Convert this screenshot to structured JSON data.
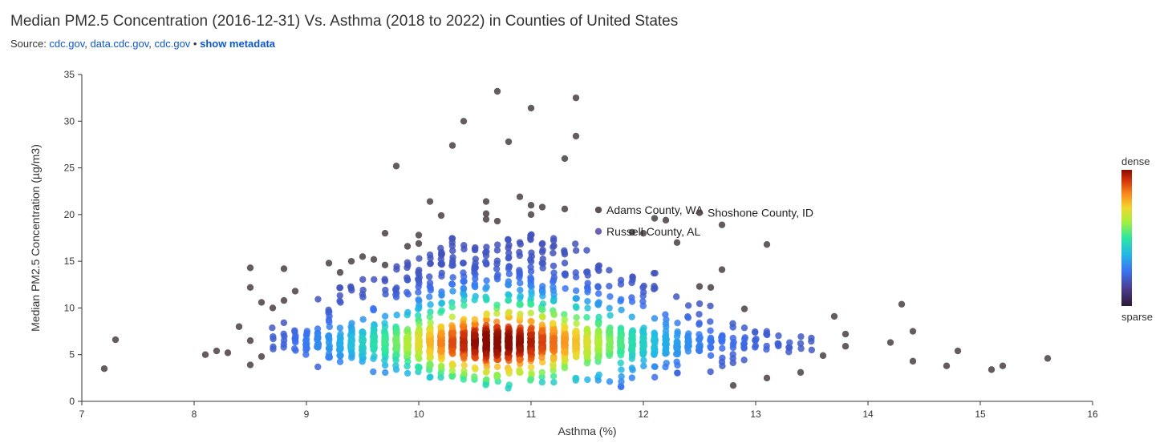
{
  "header": {
    "title": "Median PM2.5 Concentration (2016-12-31) Vs. Asthma (2018 to 2022) in Counties of United States",
    "source_prefix": "Source: ",
    "sources": [
      "cdc.gov",
      "data.cdc.gov",
      "cdc.gov"
    ],
    "separator": " • ",
    "metadata_link": "show metadata"
  },
  "colors": {
    "dense": "#8b0a00",
    "sparse": "#2b1a35",
    "outlier": "#4a3f42",
    "link": "#0b57d0"
  },
  "legend": {
    "dense_label": "dense",
    "sparse_label": "sparse"
  },
  "chart_data": {
    "type": "scatter",
    "title": "Median PM2.5 Concentration (2016-12-31) Vs. Asthma (2018 to 2022) in Counties of United States",
    "xlabel": "Asthma (%)",
    "ylabel": "Median PM2.5 Concentration (µg/m3)",
    "xlim": [
      7,
      16
    ],
    "ylim": [
      0,
      35
    ],
    "x_ticks": [
      7,
      8,
      9,
      10,
      11,
      12,
      13,
      14,
      15,
      16
    ],
    "y_ticks": [
      0,
      5,
      10,
      15,
      20,
      25,
      30,
      35
    ],
    "color_encoding": "point density",
    "annotations": [
      {
        "label": "Adams County, WA",
        "x": 11.6,
        "y": 20.5
      },
      {
        "label": "Shoshone County, ID",
        "x": 12.5,
        "y": 20.2
      },
      {
        "label": "Russell County, AL",
        "x": 11.6,
        "y": 18.2
      }
    ],
    "outliers": [
      [
        7.2,
        3.5
      ],
      [
        7.3,
        6.6
      ],
      [
        8.1,
        5.0
      ],
      [
        8.2,
        5.4
      ],
      [
        8.3,
        5.2
      ],
      [
        8.4,
        8.0
      ],
      [
        8.5,
        14.3
      ],
      [
        8.5,
        12.2
      ],
      [
        8.5,
        6.5
      ],
      [
        8.5,
        3.9
      ],
      [
        8.6,
        10.6
      ],
      [
        8.6,
        4.8
      ],
      [
        8.7,
        10.0
      ],
      [
        8.8,
        14.2
      ],
      [
        8.8,
        10.8
      ],
      [
        8.9,
        11.8
      ],
      [
        9.2,
        14.8
      ],
      [
        9.3,
        13.8
      ],
      [
        9.4,
        15.0
      ],
      [
        9.5,
        15.5
      ],
      [
        9.6,
        15.2
      ],
      [
        9.7,
        14.6
      ],
      [
        9.7,
        18.0
      ],
      [
        9.8,
        25.2
      ],
      [
        9.9,
        16.6
      ],
      [
        10.0,
        17.8
      ],
      [
        10.0,
        16.9
      ],
      [
        10.1,
        21.4
      ],
      [
        10.2,
        19.9
      ],
      [
        10.3,
        27.4
      ],
      [
        10.4,
        30.0
      ],
      [
        10.6,
        21.4
      ],
      [
        10.6,
        20.1
      ],
      [
        10.6,
        19.5
      ],
      [
        10.7,
        33.2
      ],
      [
        10.7,
        19.3
      ],
      [
        10.8,
        27.8
      ],
      [
        10.9,
        21.9
      ],
      [
        11.0,
        31.4
      ],
      [
        11.0,
        21.0
      ],
      [
        11.0,
        20.0
      ],
      [
        11.1,
        20.8
      ],
      [
        11.3,
        26.0
      ],
      [
        11.3,
        20.6
      ],
      [
        11.4,
        32.5
      ],
      [
        11.4,
        28.4
      ],
      [
        11.9,
        18.1
      ],
      [
        12.0,
        18.0
      ],
      [
        12.1,
        19.6
      ],
      [
        12.2,
        19.4
      ],
      [
        12.3,
        17.0
      ],
      [
        12.5,
        12.3
      ],
      [
        12.6,
        12.2
      ],
      [
        12.7,
        18.9
      ],
      [
        12.7,
        14.1
      ],
      [
        12.9,
        9.9
      ],
      [
        13.1,
        16.8
      ],
      [
        13.1,
        2.5
      ],
      [
        13.4,
        3.1
      ],
      [
        13.6,
        4.9
      ],
      [
        13.7,
        9.1
      ],
      [
        13.8,
        7.2
      ],
      [
        13.8,
        5.9
      ],
      [
        14.2,
        6.3
      ],
      [
        14.3,
        10.4
      ],
      [
        14.4,
        7.5
      ],
      [
        14.4,
        4.3
      ],
      [
        14.7,
        3.8
      ],
      [
        14.8,
        5.4
      ],
      [
        15.1,
        3.4
      ],
      [
        15.2,
        3.8
      ],
      [
        15.6,
        4.6
      ],
      [
        12.8,
        1.7
      ]
    ],
    "dense_columns": [
      {
        "x": 8.7,
        "n": 5,
        "ymin": 4.5,
        "ymax": 8.5
      },
      {
        "x": 8.8,
        "n": 6,
        "ymin": 4.5,
        "ymax": 9.0
      },
      {
        "x": 8.9,
        "n": 10,
        "ymin": 3.8,
        "ymax": 10.0
      },
      {
        "x": 9.0,
        "n": 14,
        "ymin": 3.5,
        "ymax": 10.5
      },
      {
        "x": 9.1,
        "n": 18,
        "ymin": 3.5,
        "ymax": 11.0
      },
      {
        "x": 9.2,
        "n": 22,
        "ymin": 3.0,
        "ymax": 11.5
      },
      {
        "x": 9.3,
        "n": 28,
        "ymin": 3.5,
        "ymax": 12.5
      },
      {
        "x": 9.4,
        "n": 34,
        "ymin": 3.5,
        "ymax": 13.0
      },
      {
        "x": 9.5,
        "n": 40,
        "ymin": 3.5,
        "ymax": 13.5
      },
      {
        "x": 9.6,
        "n": 46,
        "ymin": 3.0,
        "ymax": 13.5
      },
      {
        "x": 9.7,
        "n": 52,
        "ymin": 3.0,
        "ymax": 14.0
      },
      {
        "x": 9.8,
        "n": 60,
        "ymin": 3.0,
        "ymax": 14.5
      },
      {
        "x": 9.9,
        "n": 70,
        "ymin": 2.5,
        "ymax": 15.0
      },
      {
        "x": 10.0,
        "n": 80,
        "ymin": 2.5,
        "ymax": 15.5
      },
      {
        "x": 10.1,
        "n": 90,
        "ymin": 2.5,
        "ymax": 16.0
      },
      {
        "x": 10.2,
        "n": 100,
        "ymin": 2.5,
        "ymax": 16.5
      },
      {
        "x": 10.3,
        "n": 110,
        "ymin": 2.0,
        "ymax": 17.5
      },
      {
        "x": 10.4,
        "n": 118,
        "ymin": 2.0,
        "ymax": 17.5
      },
      {
        "x": 10.5,
        "n": 125,
        "ymin": 2.0,
        "ymax": 17.0
      },
      {
        "x": 10.6,
        "n": 130,
        "ymin": 1.5,
        "ymax": 17.5
      },
      {
        "x": 10.7,
        "n": 130,
        "ymin": 2.0,
        "ymax": 17.0
      },
      {
        "x": 10.8,
        "n": 128,
        "ymin": 1.2,
        "ymax": 17.5
      },
      {
        "x": 10.9,
        "n": 125,
        "ymin": 2.0,
        "ymax": 17.5
      },
      {
        "x": 11.0,
        "n": 120,
        "ymin": 2.0,
        "ymax": 18.0
      },
      {
        "x": 11.1,
        "n": 112,
        "ymin": 2.0,
        "ymax": 17.0
      },
      {
        "x": 11.2,
        "n": 104,
        "ymin": 2.0,
        "ymax": 17.5
      },
      {
        "x": 11.3,
        "n": 96,
        "ymin": 2.0,
        "ymax": 16.5
      },
      {
        "x": 11.4,
        "n": 88,
        "ymin": 2.0,
        "ymax": 17.0
      },
      {
        "x": 11.5,
        "n": 78,
        "ymin": 2.0,
        "ymax": 16.5
      },
      {
        "x": 11.6,
        "n": 70,
        "ymin": 2.0,
        "ymax": 16.0
      },
      {
        "x": 11.7,
        "n": 62,
        "ymin": 2.0,
        "ymax": 16.0
      },
      {
        "x": 11.8,
        "n": 54,
        "ymin": 1.5,
        "ymax": 15.5
      },
      {
        "x": 11.9,
        "n": 46,
        "ymin": 2.0,
        "ymax": 15.0
      },
      {
        "x": 12.0,
        "n": 40,
        "ymin": 2.0,
        "ymax": 14.5
      },
      {
        "x": 12.1,
        "n": 34,
        "ymin": 2.5,
        "ymax": 14.0
      },
      {
        "x": 12.2,
        "n": 28,
        "ymin": 2.5,
        "ymax": 13.5
      },
      {
        "x": 12.3,
        "n": 24,
        "ymin": 3.0,
        "ymax": 13.0
      },
      {
        "x": 12.4,
        "n": 20,
        "ymin": 3.0,
        "ymax": 12.0
      },
      {
        "x": 12.5,
        "n": 16,
        "ymin": 3.0,
        "ymax": 11.0
      },
      {
        "x": 12.6,
        "n": 13,
        "ymin": 3.0,
        "ymax": 10.5
      },
      {
        "x": 12.7,
        "n": 11,
        "ymin": 3.5,
        "ymax": 9.5
      },
      {
        "x": 12.8,
        "n": 9,
        "ymin": 3.5,
        "ymax": 9.0
      },
      {
        "x": 12.9,
        "n": 8,
        "ymin": 3.5,
        "ymax": 8.5
      },
      {
        "x": 13.0,
        "n": 7,
        "ymin": 3.5,
        "ymax": 8.5
      },
      {
        "x": 13.1,
        "n": 6,
        "ymin": 3.5,
        "ymax": 8.5
      },
      {
        "x": 13.2,
        "n": 5,
        "ymin": 4.0,
        "ymax": 8.0
      },
      {
        "x": 13.3,
        "n": 4,
        "ymin": 4.0,
        "ymax": 8.5
      },
      {
        "x": 13.4,
        "n": 3,
        "ymin": 5.0,
        "ymax": 7.5
      },
      {
        "x": 13.5,
        "n": 3,
        "ymin": 5.5,
        "ymax": 7.0
      }
    ]
  }
}
